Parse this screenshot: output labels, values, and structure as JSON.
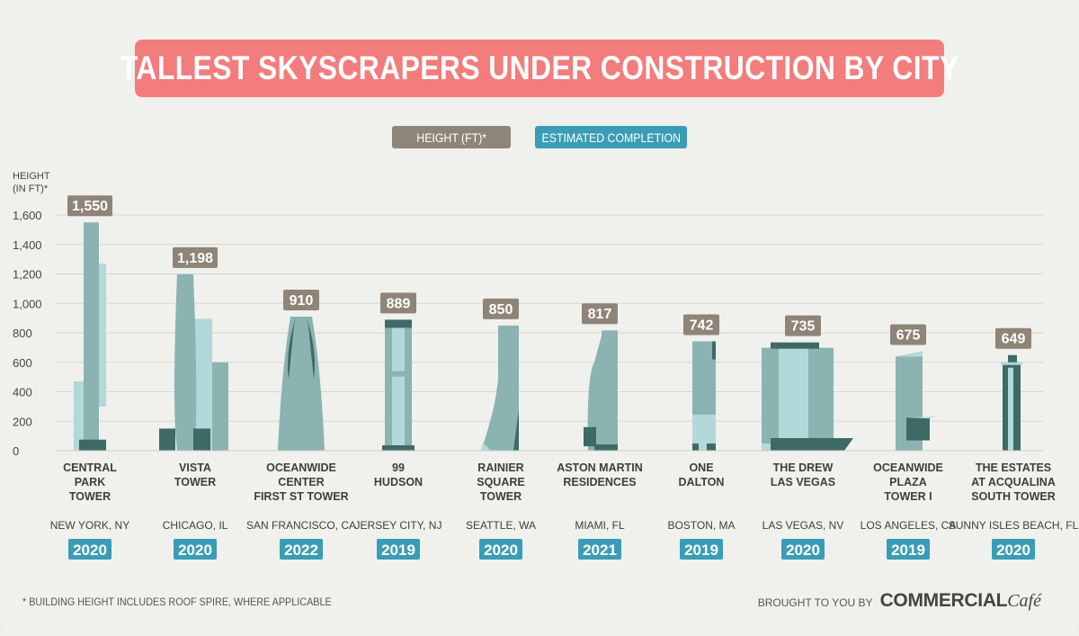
{
  "title": "TALLEST  SKYSCRAPERS UNDER CONSTRUCTION BY CITY",
  "legend": {
    "height_label": "HEIGHT (FT)*",
    "completion_label": "ESTIMATED COMPLETION"
  },
  "colors": {
    "title_bg": "#f37c7c",
    "height_chip": "#8f8478",
    "completion_chip": "#3a9db5",
    "tower_main": "#8ab3b2",
    "tower_light": "#b3d8d9",
    "tower_dark": "#3e6a66"
  },
  "footnote": "* BUILDING HEIGHT INCLUDES ROOF SPIRE, WHERE APPLICABLE",
  "brand": {
    "prefix": "BROUGHT TO YOU BY",
    "name": "COMMERCIAL",
    "suffix": "Café"
  },
  "chart_data": {
    "type": "bar",
    "ylabel": "HEIGHT\n(IN FT)*",
    "ylim": [
      0,
      1600
    ],
    "yticks": [
      "0",
      "200",
      "400",
      "600",
      "800",
      "1,000",
      "1,200",
      "1,400",
      "1,600"
    ],
    "grid": true,
    "categories": [
      "CENTRAL\nPARK\nTOWER",
      "VISTA\nTOWER",
      "OCEANWIDE\nCENTER\nFIRST ST TOWER",
      "99\nHUDSON",
      "RAINIER\nSQUARE\nTOWER",
      "ASTON MARTIN\nRESIDENCES",
      "ONE\nDALTON",
      "THE DREW\nLAS VEGAS",
      "OCEANWIDE\nPLAZA\nTOWER I",
      "THE ESTATES\nAT ACQUALINA\nSOUTH  TOWER"
    ],
    "cities": [
      "NEW YORK, NY",
      "CHICAGO, IL",
      "SAN FRANCISCO, CA",
      "JERSEY CITY, NJ",
      "SEATTLE, WA",
      "MIAMI, FL",
      "BOSTON, MA",
      "LAS VEGAS, NV",
      "LOS ANGELES, CA",
      "SUNNY ISLES BEACH, FL"
    ],
    "values": [
      1550,
      1198,
      910,
      889,
      850,
      817,
      742,
      735,
      675,
      649
    ],
    "value_labels": [
      "1,550",
      "1,198",
      "910",
      "889",
      "850",
      "817",
      "742",
      "735",
      "675",
      "649"
    ],
    "completion": [
      "2020",
      "2020",
      "2022",
      "2019",
      "2020",
      "2021",
      "2019",
      "2020",
      "2019",
      "2020"
    ]
  }
}
